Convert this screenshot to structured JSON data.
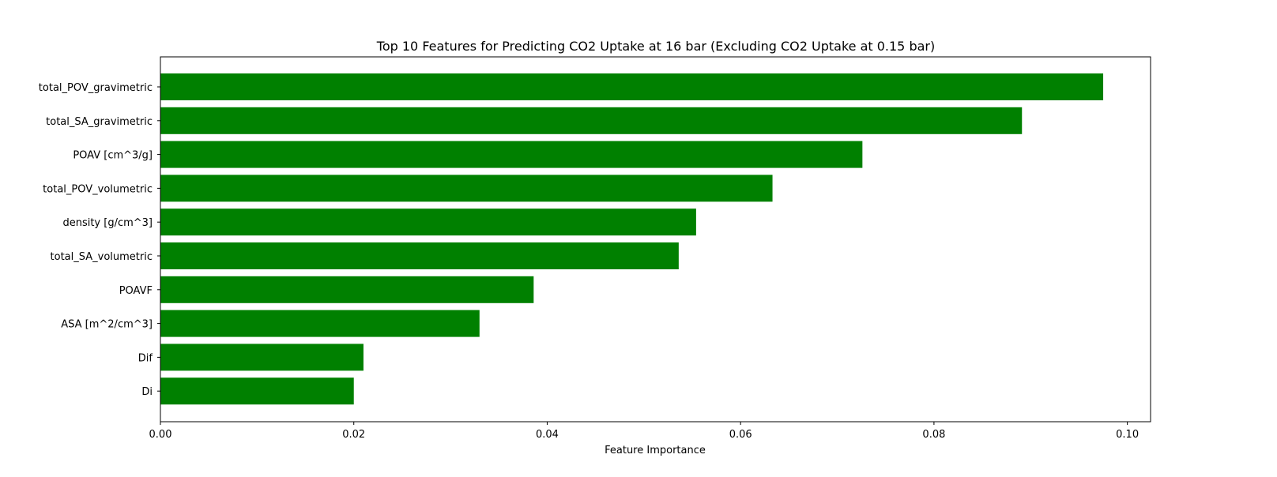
{
  "chart_data": {
    "type": "bar",
    "orientation": "horizontal",
    "title": "Top 10 Features for Predicting CO2 Uptake at 16 bar (Excluding CO2 Uptake at 0.15 bar)",
    "xlabel": "Feature Importance",
    "ylabel": "",
    "categories": [
      "total_POV_gravimetric",
      "total_SA_gravimetric",
      "POAV [cm^3/g]",
      "total_POV_volumetric",
      "density [g/cm^3]",
      "total_SA_volumetric",
      "POAVF",
      "ASA [m^2/cm^3]",
      "Dif",
      "Di"
    ],
    "values": [
      0.0975,
      0.0891,
      0.0726,
      0.0633,
      0.0554,
      0.0536,
      0.0386,
      0.033,
      0.021,
      0.02
    ],
    "xlim": [
      0.0,
      0.1024
    ],
    "xticks": [
      0.0,
      0.02,
      0.04,
      0.06,
      0.08,
      0.1
    ],
    "xtick_labels": [
      "0.00",
      "0.02",
      "0.04",
      "0.06",
      "0.08",
      "0.10"
    ],
    "bar_color": "#008000",
    "grid": false,
    "legend": "none"
  }
}
